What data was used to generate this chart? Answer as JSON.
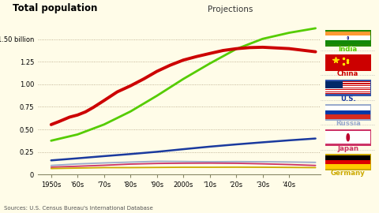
{
  "title": "Total population",
  "projections_label": "Projections",
  "source": "Sources: U.S. Census Bureau's International Database",
  "background_color": "#fffce8",
  "plot_bg_color": "#fffce8",
  "yticks": [
    0,
    0.25,
    0.5,
    0.75,
    1.0,
    1.25,
    1.5
  ],
  "ytick_labels": [
    "0",
    "0.25",
    "0.50",
    "0.75",
    "1.00",
    "1.25",
    "1.50 billion"
  ],
  "xtick_labels": [
    "1950s",
    "'60s",
    "'70s",
    "'80s",
    "'90s",
    "2000s",
    "'10s",
    "'20s",
    "'30s",
    "'40s"
  ],
  "x_positions": [
    1950,
    1960,
    1970,
    1980,
    1990,
    2000,
    2010,
    2020,
    2030,
    2040
  ],
  "xlim": [
    1945,
    2052
  ],
  "ylim": [
    0,
    1.65
  ],
  "countries": {
    "India": {
      "color": "#55cc00",
      "lw": 2.0,
      "data_x": [
        1950,
        1960,
        1970,
        1980,
        1990,
        2000,
        2010,
        2020,
        2030,
        2040,
        2050
      ],
      "data_y": [
        0.376,
        0.445,
        0.555,
        0.699,
        0.873,
        1.059,
        1.23,
        1.39,
        1.503,
        1.57,
        1.62
      ]
    },
    "China": {
      "color": "#cc0000",
      "lw": 2.8,
      "data_x": [
        1950,
        1953,
        1957,
        1960,
        1963,
        1966,
        1970,
        1975,
        1980,
        1985,
        1990,
        1995,
        2000,
        2005,
        2010,
        2015,
        2020,
        2025,
        2030,
        2040,
        2050
      ],
      "data_y": [
        0.554,
        0.588,
        0.637,
        0.66,
        0.695,
        0.745,
        0.82,
        0.916,
        0.983,
        1.059,
        1.143,
        1.211,
        1.268,
        1.307,
        1.341,
        1.374,
        1.394,
        1.406,
        1.41,
        1.395,
        1.36
      ]
    },
    "U.S.": {
      "color": "#1a3a9e",
      "lw": 1.8,
      "data_x": [
        1950,
        1960,
        1970,
        1980,
        1990,
        2000,
        2010,
        2020,
        2030,
        2040,
        2050
      ],
      "data_y": [
        0.158,
        0.181,
        0.205,
        0.228,
        0.253,
        0.282,
        0.31,
        0.335,
        0.358,
        0.38,
        0.4
      ]
    },
    "Russia": {
      "color": "#99aacc",
      "lw": 1.3,
      "data_x": [
        1950,
        1960,
        1970,
        1980,
        1990,
        2000,
        2010,
        2020,
        2030,
        2040,
        2050
      ],
      "data_y": [
        0.102,
        0.119,
        0.13,
        0.139,
        0.148,
        0.146,
        0.143,
        0.145,
        0.143,
        0.14,
        0.136
      ]
    },
    "Japan": {
      "color": "#cc3366",
      "lw": 1.3,
      "data_x": [
        1950,
        1960,
        1970,
        1980,
        1990,
        2000,
        2010,
        2020,
        2030,
        2040,
        2050
      ],
      "data_y": [
        0.083,
        0.093,
        0.104,
        0.117,
        0.124,
        0.127,
        0.128,
        0.126,
        0.12,
        0.112,
        0.102
      ]
    },
    "Germany": {
      "color": "#ccaa00",
      "lw": 1.3,
      "data_x": [
        1950,
        1960,
        1970,
        1980,
        1990,
        2000,
        2010,
        2020,
        2030,
        2040,
        2050
      ],
      "data_y": [
        0.068,
        0.073,
        0.078,
        0.078,
        0.08,
        0.082,
        0.082,
        0.083,
        0.082,
        0.08,
        0.078
      ]
    }
  },
  "flag_labels": [
    "India",
    "China",
    "U.S.",
    "Russia",
    "Japan",
    "Germany"
  ],
  "label_colors": {
    "India": "#55cc00",
    "China": "#cc0000",
    "U.S.": "#1a3a9e",
    "Russia": "#99aacc",
    "Japan": "#cc3366",
    "Germany": "#ccaa00"
  },
  "flag_border_colors": {
    "India": "#228800",
    "China": "#cc0000",
    "U.S.": "#3355aa",
    "Russia": "#99aacc",
    "Japan": "#cc3366",
    "Germany": "#ccaa00"
  }
}
